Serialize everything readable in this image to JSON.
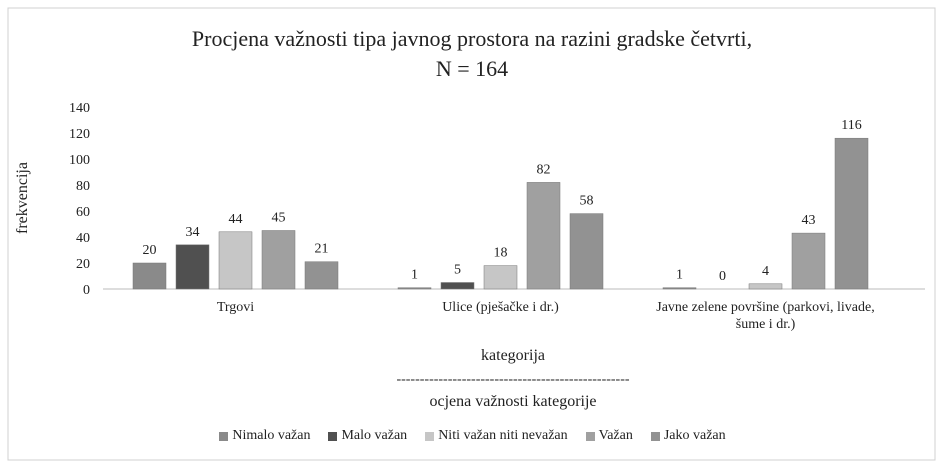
{
  "chart_data": {
    "type": "bar",
    "title": [
      "Procjena važnosti tipa javnog prostora na razini gradske četvrti,",
      "N = 164"
    ],
    "ylabel": "frekvencija",
    "xlabel": [
      "kategorija",
      "--------------------------------------------------",
      "ocjena važnosti kategorije"
    ],
    "categories": [
      "Trgovi",
      "Ulice (pješačke i dr.)",
      "Javne zelene površine (parkovi, livade, šume i dr.)"
    ],
    "series": [
      {
        "name": "Nimalo važan",
        "color": "#8a8a8a",
        "values": [
          20,
          1,
          1
        ]
      },
      {
        "name": "Malo važan",
        "color": "#505050",
        "values": [
          34,
          5,
          0
        ]
      },
      {
        "name": "Niti važan niti nevažan",
        "color": "#c6c6c6",
        "values": [
          44,
          18,
          4
        ]
      },
      {
        "name": "Važan",
        "color": "#a0a0a0",
        "values": [
          45,
          82,
          43
        ]
      },
      {
        "name": "Jako važan",
        "color": "#929292",
        "values": [
          21,
          58,
          116
        ]
      }
    ],
    "ylim": [
      0,
      140
    ],
    "yticks": [
      0,
      20,
      40,
      60,
      80,
      100,
      120,
      140
    ],
    "grid": false,
    "legend": "bottom"
  }
}
